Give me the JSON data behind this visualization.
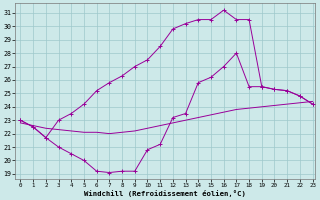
{
  "xlabel": "Windchill (Refroidissement éolien,°C)",
  "x_ticks": [
    0,
    1,
    2,
    3,
    4,
    5,
    6,
    7,
    8,
    9,
    10,
    11,
    12,
    13,
    14,
    15,
    16,
    17,
    18,
    19,
    20,
    21,
    22,
    23
  ],
  "ylim_min": 18.6,
  "ylim_max": 31.7,
  "xlim_min": -0.4,
  "xlim_max": 23.2,
  "y_ticks": [
    19,
    20,
    21,
    22,
    23,
    24,
    25,
    26,
    27,
    28,
    29,
    30,
    31
  ],
  "background_color": "#cde9e9",
  "grid_color": "#9fc8cc",
  "line_color": "#990099",
  "curve_bottom_x": [
    0,
    1,
    2,
    3,
    4,
    5,
    6,
    7,
    8,
    9,
    10,
    11,
    12,
    13,
    14,
    15,
    16,
    17,
    18,
    19,
    20,
    21,
    22,
    23
  ],
  "curve_bottom_y": [
    23.0,
    22.5,
    21.7,
    21.0,
    20.5,
    20.0,
    19.2,
    19.1,
    19.2,
    19.2,
    20.8,
    21.2,
    23.2,
    23.5,
    25.8,
    26.2,
    27.0,
    28.0,
    25.5,
    25.5,
    25.3,
    25.2,
    24.8,
    24.2
  ],
  "curve_mid_x": [
    0,
    1,
    2,
    3,
    4,
    5,
    6,
    7,
    8,
    9,
    10,
    11,
    12,
    13,
    14,
    15,
    16,
    17,
    18,
    19,
    20,
    21,
    22,
    23
  ],
  "curve_mid_y": [
    22.8,
    22.6,
    22.4,
    22.3,
    22.2,
    22.1,
    22.1,
    22.0,
    22.1,
    22.2,
    22.4,
    22.6,
    22.8,
    23.0,
    23.2,
    23.4,
    23.6,
    23.8,
    23.9,
    24.0,
    24.1,
    24.2,
    24.3,
    24.4
  ],
  "curve_top_x": [
    0,
    1,
    2,
    3,
    4,
    5,
    6,
    7,
    8,
    9,
    10,
    11,
    12,
    13,
    14,
    15,
    16,
    17,
    18,
    19,
    20,
    21,
    22,
    23
  ],
  "curve_top_y": [
    23.0,
    22.5,
    21.7,
    23.0,
    23.5,
    24.2,
    25.2,
    25.8,
    26.3,
    27.0,
    27.5,
    28.5,
    29.8,
    30.2,
    30.5,
    30.5,
    31.2,
    30.5,
    30.5,
    25.5,
    25.3,
    25.2,
    24.8,
    24.2
  ]
}
